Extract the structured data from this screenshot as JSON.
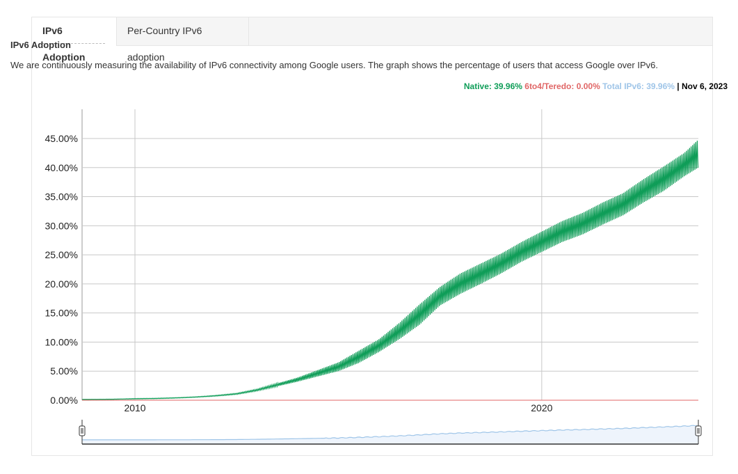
{
  "tabs": [
    {
      "label": "IPv6 Adoption",
      "active": true
    },
    {
      "label": "Per-Country IPv6 adoption",
      "active": false
    }
  ],
  "section_title": "IPv6 Adoption",
  "description": "We are continuously measuring the availability of IPv6 connectivity among Google users. The graph shows the percentage of users that access Google over IPv6.",
  "legend": {
    "native_label": "Native: 39.96%",
    "teredo_label": "6to4/Teredo: 0.00%",
    "total_label": "Total IPv6: 39.96%",
    "date_label": "| Nov 6, 2023"
  },
  "colors": {
    "native": "#0f9d58",
    "teredo": "#e06666",
    "total": "#9fc5e8"
  },
  "chart_data": {
    "type": "line",
    "title": "",
    "xlabel": "",
    "ylabel": "",
    "xlim": [
      2008.7,
      2023.85
    ],
    "ylim": [
      0,
      45
    ],
    "y_ticks": [
      0,
      5,
      10,
      15,
      20,
      25,
      30,
      35,
      40,
      45
    ],
    "y_tick_labels": [
      "0.00%",
      "5.00%",
      "10.00%",
      "15.00%",
      "20.00%",
      "25.00%",
      "30.00%",
      "35.00%",
      "40.00%",
      "45.00%"
    ],
    "x_ticks": [
      2010,
      2020
    ],
    "x_tick_labels": [
      "2010",
      "2020"
    ],
    "grid": true,
    "legend_position": "top-right",
    "series": [
      {
        "name": "Native",
        "x": [
          2008.7,
          2009.5,
          2010.0,
          2010.5,
          2011.0,
          2011.5,
          2012.0,
          2012.5,
          2013.0,
          2013.5,
          2014.0,
          2014.5,
          2015.0,
          2015.5,
          2016.0,
          2016.5,
          2017.0,
          2017.5,
          2018.0,
          2018.5,
          2019.0,
          2019.5,
          2020.0,
          2020.5,
          2021.0,
          2021.5,
          2022.0,
          2022.5,
          2023.0,
          2023.5,
          2023.85
        ],
        "low": [
          0.1,
          0.15,
          0.2,
          0.25,
          0.35,
          0.5,
          0.7,
          1.0,
          1.6,
          2.4,
          3.2,
          4.1,
          5.0,
          6.4,
          8.3,
          10.5,
          13.0,
          16.3,
          18.3,
          20.0,
          21.8,
          23.8,
          25.5,
          27.2,
          28.5,
          30.2,
          31.8,
          34.0,
          36.0,
          38.5,
          40.0
        ],
        "high": [
          0.15,
          0.2,
          0.3,
          0.35,
          0.45,
          0.6,
          0.85,
          1.2,
          1.9,
          2.9,
          3.9,
          5.2,
          6.5,
          8.5,
          10.5,
          13.3,
          16.5,
          19.5,
          21.8,
          23.5,
          25.2,
          27.2,
          29.0,
          30.8,
          32.2,
          34.0,
          35.6,
          38.0,
          40.2,
          42.5,
          44.8
        ]
      },
      {
        "name": "6to4/Teredo",
        "x": [
          2008.7,
          2023.85
        ],
        "values": [
          0.0,
          0.0
        ]
      }
    ]
  }
}
